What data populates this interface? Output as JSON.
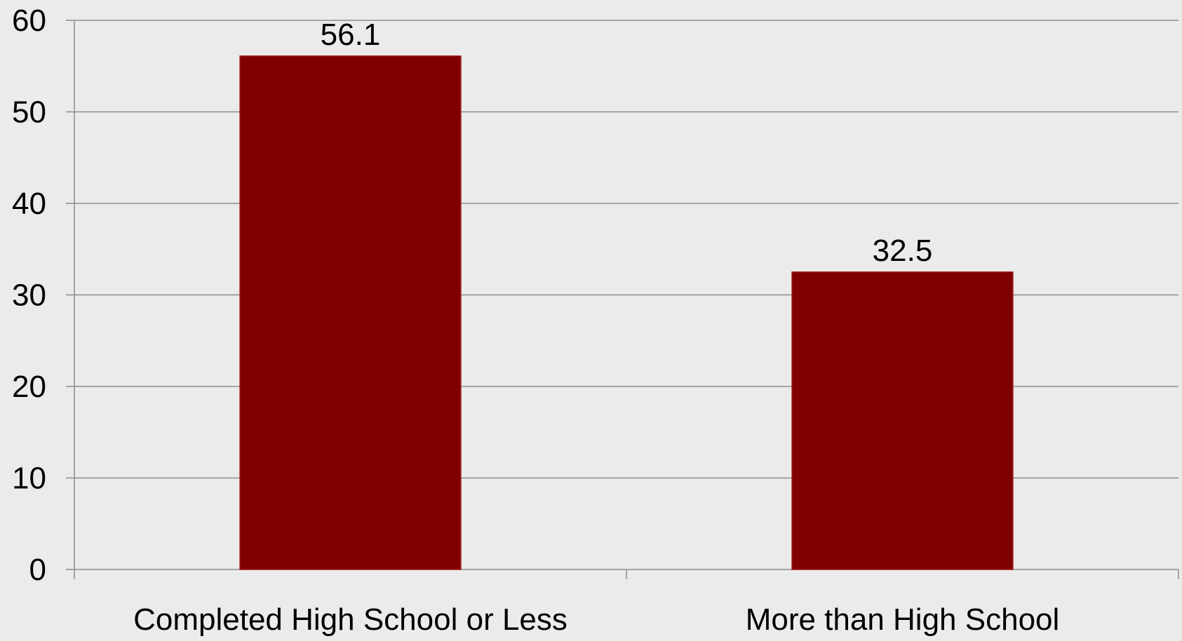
{
  "chart_data": {
    "type": "bar",
    "categories": [
      "Completed High School or Less",
      "More than High School"
    ],
    "values": [
      56.1,
      32.5
    ],
    "data_labels": [
      "56.1",
      "32.5"
    ],
    "title": "",
    "xlabel": "",
    "ylabel": "",
    "ylim": [
      0,
      60
    ],
    "yticks": [
      0,
      10,
      20,
      30,
      40,
      50,
      60
    ],
    "ytick_labels": [
      "0",
      "10",
      "20",
      "30",
      "40",
      "50",
      "60"
    ],
    "grid": true,
    "legend": "none",
    "colors": {
      "bar": "#7f0000",
      "bar_border": "#a31515",
      "background": "#ebebeb",
      "grid": "#8c8c8c",
      "axis": "#8c8c8c",
      "text": "#000000"
    }
  }
}
